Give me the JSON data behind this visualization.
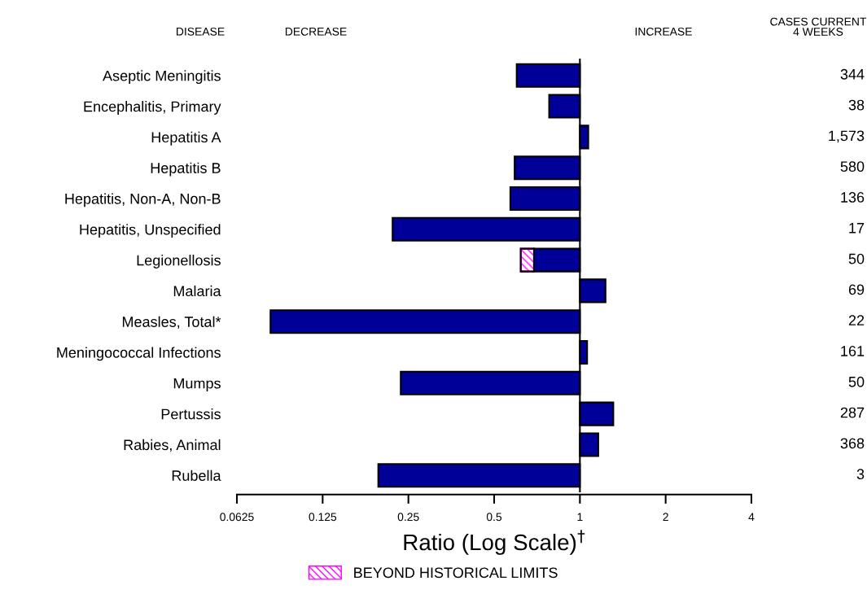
{
  "chart_data": {
    "type": "bar",
    "orientation": "horizontal",
    "log": "x",
    "categories": [
      "Aseptic Meningitis",
      "Encephalitis, Primary",
      "Hepatitis A",
      "Hepatitis B",
      "Hepatitis, Non-A, Non-B",
      "Hepatitis, Unspecified",
      "Legionellosis",
      "Malaria",
      "Measles, Total*",
      "Meningococcal Infections",
      "Mumps",
      "Pertussis",
      "Rabies, Animal",
      "Rubella"
    ],
    "series": [
      {
        "color": "#000099",
        "base": [
          1,
          1,
          1,
          1,
          1,
          1,
          1,
          1,
          1,
          1,
          1,
          1,
          1,
          1
        ],
        "values": [
          -0.4,
          -0.22,
          0.07,
          -0.41,
          -0.43,
          -0.78,
          -0.31,
          0.23,
          -0.918,
          0.06,
          -0.765,
          0.31,
          0.16,
          -0.804
        ]
      },
      {
        "name": "BEYOND HISTORICAL LIMITS",
        "color": "#ff00ff",
        "base": [
          null,
          null,
          null,
          null,
          null,
          null,
          0.69,
          null,
          null,
          null,
          null,
          null,
          null,
          null
        ],
        "values": [
          null,
          null,
          null,
          null,
          null,
          null,
          -0.07,
          null,
          null,
          null,
          null,
          null,
          null,
          null
        ]
      }
    ],
    "xlim": [
      0.0625,
      4
    ],
    "xticks": [
      0.0625,
      0.125,
      0.25,
      0.5,
      1,
      2,
      4
    ],
    "xlabel": "Ratio (Log Scale)$^{†}$",
    "ylabel": "DISEASE",
    "ref_lines": [
      {
        "axis": "x",
        "value": 1,
        "color": "#000000"
      }
    ],
    "legend": "bottom",
    "annotations": [
      "DECREASE",
      "INCREASE",
      "CASES CURRENT\n4 WEEKS",
      "344",
      "38",
      "1,573",
      "580",
      "136",
      "17",
      "50",
      "69",
      "22",
      "161",
      "50",
      "287",
      "368",
      "3"
    ]
  }
}
